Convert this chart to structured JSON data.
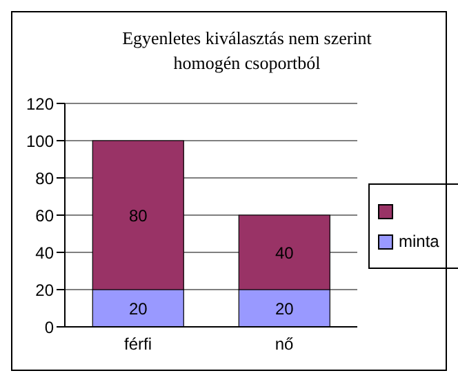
{
  "chart_data": {
    "type": "bar",
    "title": "Egyenletes kiválasztás nem szerint homogén csoportból",
    "categories": [
      "férfi",
      "nő"
    ],
    "stacked": true,
    "series": [
      {
        "name": "minta",
        "color": "#9999ff",
        "values": [
          20,
          20
        ]
      },
      {
        "color": "#993366",
        "values": [
          80,
          40
        ]
      }
    ],
    "ylim": [
      0,
      120
    ],
    "yticks": [
      0,
      20,
      40,
      60,
      80,
      100,
      120
    ],
    "grid": "y",
    "legend": "right",
    "data_labels": true
  }
}
